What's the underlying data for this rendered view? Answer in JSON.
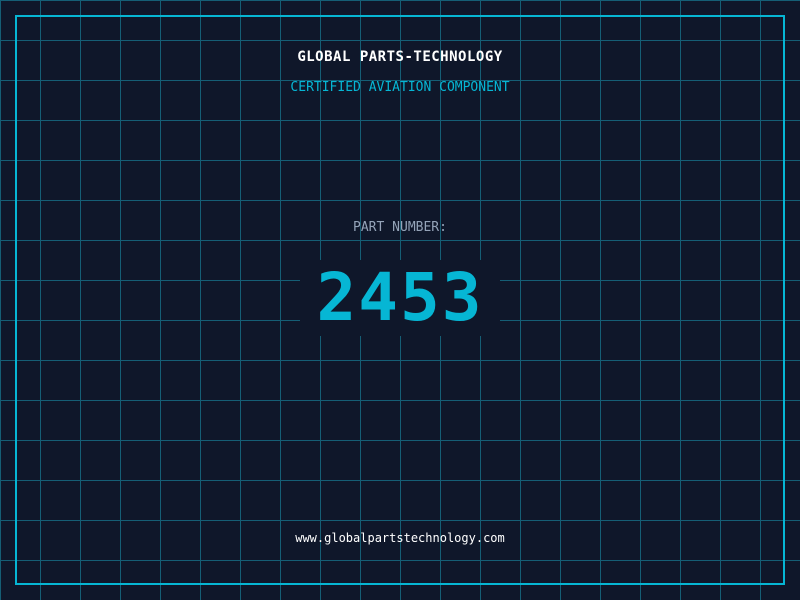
{
  "header": {
    "title": "GLOBAL PARTS-TECHNOLOGY",
    "subtitle": "CERTIFIED AVIATION COMPONENT"
  },
  "part": {
    "label": "PART NUMBER:",
    "number": "2453"
  },
  "footer": {
    "url": "www.globalpartstechnology.com"
  },
  "colors": {
    "background": "#0f172a",
    "accent": "#06b6d4",
    "grid": "#155e75"
  }
}
